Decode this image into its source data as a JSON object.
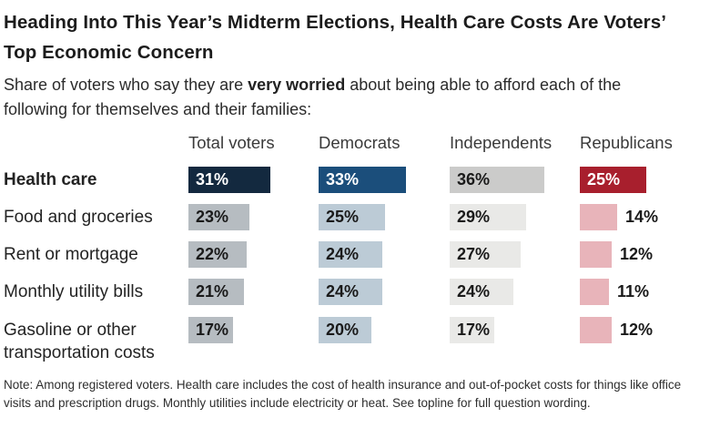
{
  "chart_data": {
    "type": "bar",
    "title": "Heading Into This Year’s Midterm Elections, Health Care Costs Are Voters’ Top Economic Concern",
    "subtitle_prefix": "Share of voters who say they are ",
    "subtitle_bold": "very worried",
    "subtitle_suffix": " about being able to afford each of the following for themselves and their families:",
    "value_suffix": "%",
    "categories": [
      "Health care",
      "Food and groceries",
      "Rent or mortgage",
      "Monthly utility bills",
      "Gasoline or other transportation costs"
    ],
    "highlighted_category": "Health care",
    "series": [
      {
        "name": "Total voters",
        "values": [
          31,
          23,
          22,
          21,
          17
        ],
        "bar_color_first": "#13293f",
        "bar_color_rest": "#b6bcc1",
        "value_color_first": "#ffffff",
        "value_color_rest": "#1a1a1a"
      },
      {
        "name": "Democrats",
        "values": [
          33,
          25,
          24,
          24,
          20
        ],
        "bar_color_first": "#1b4e7b",
        "bar_color_rest": "#bccbd6",
        "value_color_first": "#ffffff",
        "value_color_rest": "#1a1a1a"
      },
      {
        "name": "Independents",
        "values": [
          36,
          29,
          27,
          24,
          17
        ],
        "bar_color_first": "#cbcbca",
        "bar_color_rest": "#e9e9e7",
        "value_color_first": "#1a1a1a",
        "value_color_rest": "#1a1a1a"
      },
      {
        "name": "Republicans",
        "values": [
          25,
          14,
          12,
          11,
          12
        ],
        "bar_color_first": "#a81f2d",
        "bar_color_rest": "#e8b4ba",
        "value_color_first": "#ffffff",
        "value_color_rest": "#1a1a1a"
      }
    ],
    "note": "Note: Among registered voters. Health care includes the cost of health insurance and out-of-pocket costs for things like office visits and prescription drugs. Monthly utilities include electricity or heat. See topline for full question wording.",
    "legend_position": "none",
    "grid": false,
    "xlim": [
      0,
      40
    ]
  }
}
